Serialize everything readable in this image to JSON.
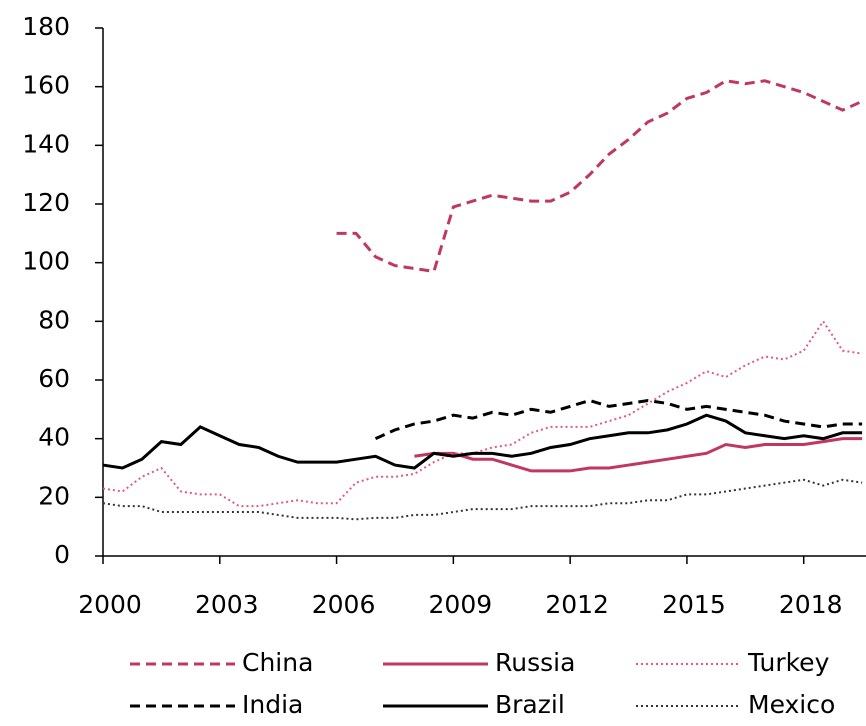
{
  "chart_data": {
    "type": "line",
    "x": [
      2000,
      2000.5,
      2001,
      2001.5,
      2002,
      2002.5,
      2003,
      2003.5,
      2004,
      2004.5,
      2005,
      2005.5,
      2006,
      2006.5,
      2007,
      2007.5,
      2008,
      2008.5,
      2009,
      2009.5,
      2010,
      2010.5,
      2011,
      2011.5,
      2012,
      2012.5,
      2013,
      2013.5,
      2014,
      2014.5,
      2015,
      2015.5,
      2016,
      2016.5,
      2017,
      2017.5,
      2018,
      2018.5,
      2019,
      2019.5
    ],
    "series": [
      {
        "name": "China",
        "color": "#c0375f",
        "style": "dashed",
        "values": [
          null,
          null,
          null,
          null,
          null,
          null,
          null,
          null,
          null,
          null,
          null,
          null,
          110,
          110,
          102,
          99,
          98,
          97,
          119,
          121,
          123,
          122,
          121,
          121,
          124,
          130,
          137,
          142,
          148,
          151,
          156,
          158,
          162,
          161,
          162,
          160,
          158,
          155,
          152,
          155
        ]
      },
      {
        "name": "Russia",
        "color": "#c0375f",
        "style": "solid",
        "values": [
          null,
          null,
          null,
          null,
          null,
          null,
          null,
          null,
          null,
          null,
          null,
          null,
          null,
          null,
          null,
          null,
          34,
          35,
          35,
          33,
          33,
          31,
          29,
          29,
          29,
          30,
          30,
          31,
          32,
          33,
          34,
          35,
          38,
          37,
          38,
          38,
          38,
          39,
          40,
          40
        ]
      },
      {
        "name": "Turkey",
        "color": "#e05a82",
        "style": "dotted",
        "values": [
          23,
          22,
          27,
          30,
          22,
          21,
          21,
          17,
          17,
          18,
          19,
          18,
          18,
          25,
          27,
          27,
          28,
          32,
          35,
          35,
          37,
          38,
          42,
          44,
          44,
          44,
          46,
          48,
          52,
          56,
          59,
          63,
          61,
          65,
          68,
          67,
          70,
          80,
          70,
          69
        ]
      },
      {
        "name": "India",
        "color": "#000000",
        "style": "dashed",
        "values": [
          null,
          null,
          null,
          null,
          null,
          null,
          null,
          null,
          null,
          null,
          null,
          null,
          null,
          null,
          40,
          43,
          45,
          46,
          48,
          47,
          49,
          48,
          50,
          49,
          51,
          53,
          51,
          52,
          53,
          52,
          50,
          51,
          50,
          49,
          48,
          46,
          45,
          44,
          45,
          45
        ]
      },
      {
        "name": "Brazil",
        "color": "#000000",
        "style": "solid",
        "values": [
          31,
          30,
          33,
          39,
          38,
          44,
          41,
          38,
          37,
          34,
          32,
          32,
          32,
          33,
          34,
          31,
          30,
          35,
          34,
          35,
          35,
          34,
          35,
          37,
          38,
          40,
          41,
          42,
          42,
          43,
          45,
          48,
          46,
          42,
          41,
          40,
          41,
          40,
          42,
          42
        ]
      },
      {
        "name": "Mexico",
        "color": "#333333",
        "style": "dotted",
        "values": [
          18,
          17,
          17,
          15,
          15,
          15,
          15,
          15,
          15,
          14,
          13,
          13,
          13,
          12.5,
          13,
          13,
          14,
          14,
          15,
          16,
          16,
          16,
          17,
          17,
          17,
          17,
          18,
          18,
          19,
          19,
          21,
          21,
          22,
          23,
          24,
          25,
          26,
          24,
          26,
          25
        ]
      }
    ],
    "xlim": [
      2000,
      2019.6
    ],
    "xticks": [
      2000,
      2003,
      2006,
      2009,
      2012,
      2015,
      2018
    ],
    "ylim": [
      0,
      180
    ],
    "yticks": [
      0,
      20,
      40,
      60,
      80,
      100,
      120,
      140,
      160,
      180
    ]
  }
}
